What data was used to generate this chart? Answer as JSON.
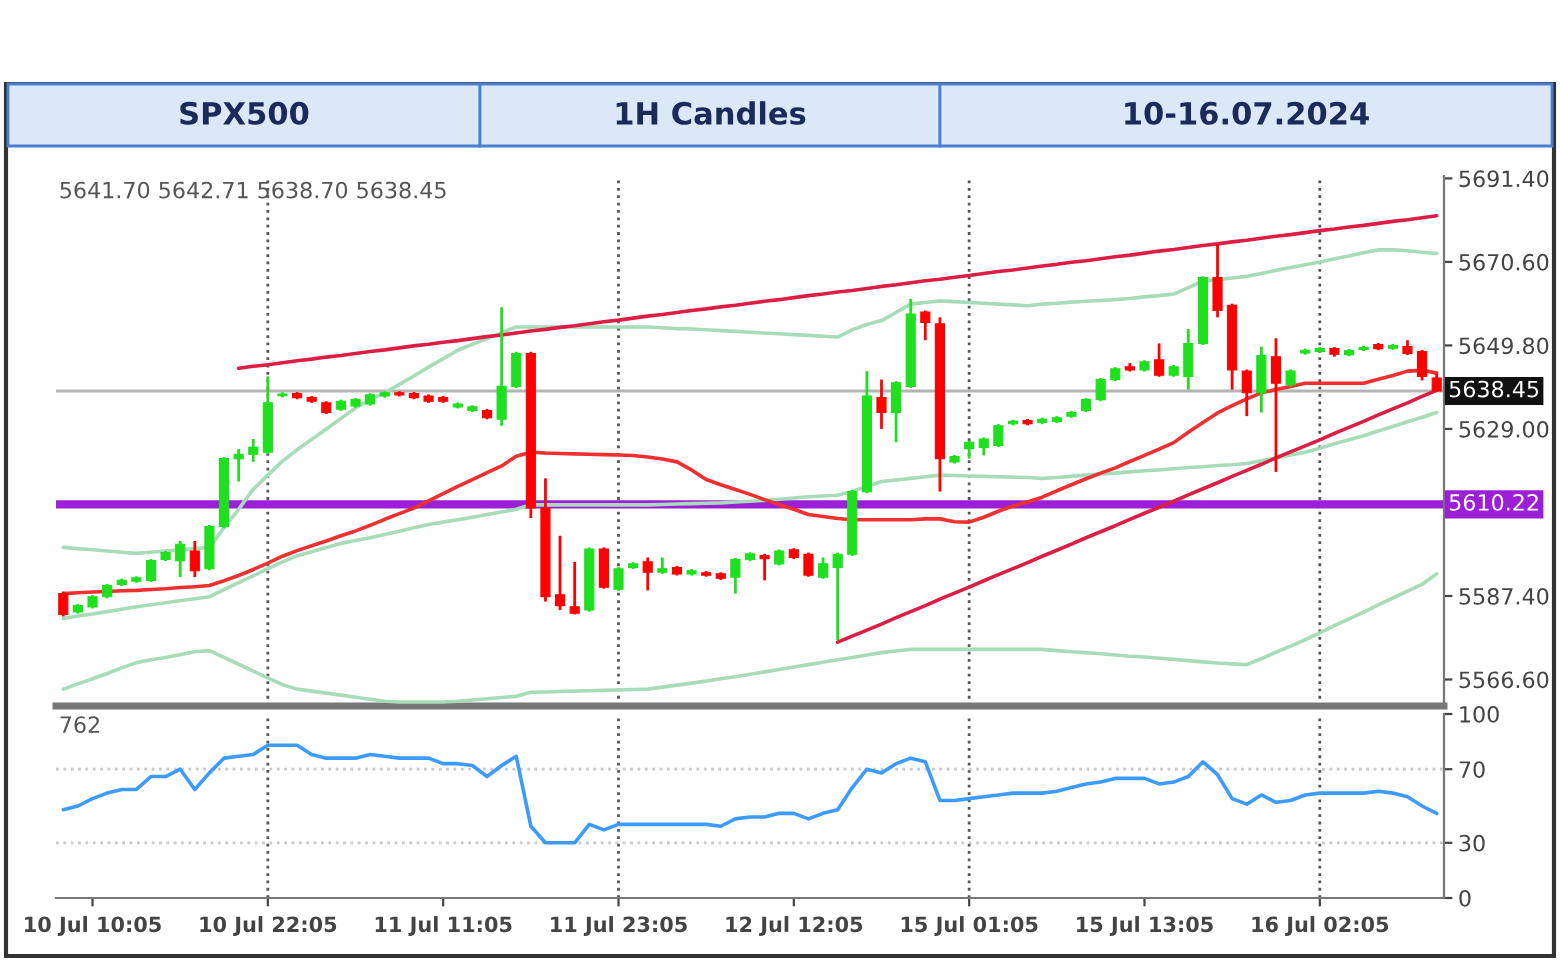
{
  "chart_data": [
    {
      "type": "candlestick",
      "title": "SPX500",
      "subtitle": "1H Candles",
      "annotations": [
        "10-16.07.2024",
        "5641.70 5642.71 5638.70 5638.45"
      ],
      "categories": [
        null,
        null,
        null,
        null,
        null,
        null,
        null,
        null,
        null,
        null,
        null,
        null,
        null,
        null,
        null,
        null,
        null,
        null,
        null,
        null,
        null,
        null,
        null,
        null,
        null,
        null,
        null,
        null,
        null,
        null,
        null,
        null,
        null,
        null,
        null,
        null,
        null,
        null,
        null,
        null,
        null,
        null,
        null,
        null,
        null,
        null,
        null,
        null,
        null,
        null,
        null,
        null,
        null,
        null,
        null,
        null,
        null,
        null,
        null,
        null,
        null,
        null,
        null,
        null,
        null,
        null,
        null,
        null,
        null,
        null,
        null,
        null,
        null,
        null,
        null,
        null,
        null,
        null,
        null,
        null,
        null,
        null,
        null,
        null,
        null,
        null,
        null,
        null,
        null,
        null,
        null,
        null,
        null,
        null,
        null
      ],
      "ohlc": [
        [
          5588.0,
          5588.5,
          5582.3,
          5582.8
        ],
        [
          5583.4,
          5585.4,
          5583.0,
          5585.0
        ],
        [
          5584.7,
          5587.6,
          5584.3,
          5587.2
        ],
        [
          5587.2,
          5590.4,
          5586.8,
          5590.0
        ],
        [
          5590.3,
          5591.7,
          5589.9,
          5591.3
        ],
        [
          5591.1,
          5592.3,
          5590.7,
          5591.9
        ],
        [
          5591.3,
          5596.6,
          5590.9,
          5596.2
        ],
        [
          5596.5,
          5598.6,
          5596.1,
          5598.2
        ],
        [
          5596.2,
          5601.1,
          5592.1,
          5600.3
        ],
        [
          5598.6,
          5601.1,
          5592.1,
          5593.7
        ],
        [
          5594.2,
          5605.1,
          5593.8,
          5604.7
        ],
        [
          5604.7,
          5622.0,
          5604.3,
          5621.6
        ],
        [
          5621.6,
          5624.0,
          5615.9,
          5622.7
        ],
        [
          5622.7,
          5626.5,
          5620.8,
          5624.4
        ],
        [
          5623.2,
          5642.1,
          5622.7,
          5635.5
        ],
        [
          5637.3,
          5638.1,
          5636.9,
          5637.7
        ],
        [
          5637.8,
          5638.2,
          5636.4,
          5636.8
        ],
        [
          5636.8,
          5637.2,
          5635.5,
          5635.9
        ],
        [
          5635.5,
          5635.9,
          5632.7,
          5633.1
        ],
        [
          5633.9,
          5636.3,
          5633.5,
          5635.9
        ],
        [
          5634.7,
          5636.7,
          5634.3,
          5636.3
        ],
        [
          5635.2,
          5637.9,
          5634.8,
          5637.5
        ],
        [
          5637.2,
          5638.4,
          5636.8,
          5638.0
        ],
        [
          5638.0,
          5638.4,
          5637.1,
          5637.5
        ],
        [
          5637.8,
          5638.2,
          5636.4,
          5636.8
        ],
        [
          5637.2,
          5637.6,
          5635.5,
          5635.9
        ],
        [
          5636.8,
          5637.2,
          5635.5,
          5635.9
        ],
        [
          5634.5,
          5635.6,
          5634.1,
          5635.2
        ],
        [
          5633.6,
          5634.9,
          5633.2,
          5634.5
        ],
        [
          5633.6,
          5634.0,
          5631.4,
          5631.8
        ],
        [
          5631.4,
          5659.3,
          5629.8,
          5639.6
        ],
        [
          5639.6,
          5648.2,
          5639.2,
          5647.8
        ],
        [
          5647.8,
          5648.2,
          5606.8,
          5609.3
        ],
        [
          5609.3,
          5616.7,
          5586.0,
          5587.2
        ],
        [
          5587.7,
          5602.4,
          5583.9,
          5585.0
        ],
        [
          5584.7,
          5595.9,
          5582.8,
          5583.1
        ],
        [
          5583.9,
          5599.5,
          5583.5,
          5599.1
        ],
        [
          5599.1,
          5599.5,
          5589.2,
          5589.6
        ],
        [
          5589.1,
          5594.6,
          5588.7,
          5594.2
        ],
        [
          5594.5,
          5595.8,
          5594.1,
          5595.4
        ],
        [
          5595.9,
          5597.0,
          5588.8,
          5593.3
        ],
        [
          5593.3,
          5597.0,
          5592.9,
          5594.2
        ],
        [
          5594.5,
          5594.9,
          5592.5,
          5592.9
        ],
        [
          5592.9,
          5594.1,
          5592.5,
          5593.7
        ],
        [
          5593.2,
          5593.6,
          5592.2,
          5592.6
        ],
        [
          5592.9,
          5593.3,
          5591.4,
          5591.8
        ],
        [
          5592.1,
          5596.9,
          5588.0,
          5596.5
        ],
        [
          5596.5,
          5598.3,
          5596.1,
          5597.9
        ],
        [
          5597.5,
          5597.9,
          5591.3,
          5596.7
        ],
        [
          5595.4,
          5599.0,
          5595.0,
          5598.6
        ],
        [
          5598.9,
          5599.3,
          5596.6,
          5597.0
        ],
        [
          5597.8,
          5598.2,
          5592.2,
          5592.6
        ],
        [
          5592.1,
          5597.0,
          5591.7,
          5595.4
        ],
        [
          5594.5,
          5598.2,
          5576.4,
          5597.8
        ],
        [
          5597.8,
          5613.8,
          5597.4,
          5613.4
        ],
        [
          5613.4,
          5643.4,
          5613.0,
          5637.2
        ],
        [
          5636.8,
          5641.3,
          5629.0,
          5633.1
        ],
        [
          5633.1,
          5640.9,
          5625.7,
          5640.5
        ],
        [
          5639.6,
          5661.4,
          5639.2,
          5657.6
        ],
        [
          5658.1,
          5658.5,
          5651.1,
          5655.5
        ],
        [
          5655.2,
          5656.8,
          5613.4,
          5621.6
        ],
        [
          5620.8,
          5622.5,
          5620.4,
          5622.1
        ],
        [
          5624.1,
          5626.1,
          5621.6,
          5625.7
        ],
        [
          5624.4,
          5626.9,
          5622.4,
          5626.5
        ],
        [
          5624.9,
          5630.2,
          5624.5,
          5629.8
        ],
        [
          5630.3,
          5631.3,
          5629.9,
          5630.9
        ],
        [
          5631.1,
          5631.5,
          5629.9,
          5630.3
        ],
        [
          5630.6,
          5631.8,
          5630.2,
          5631.4
        ],
        [
          5630.9,
          5632.2,
          5630.5,
          5631.8
        ],
        [
          5632.2,
          5633.5,
          5631.8,
          5633.1
        ],
        [
          5633.6,
          5636.7,
          5633.2,
          5636.3
        ],
        [
          5636.3,
          5641.7,
          5635.9,
          5641.3
        ],
        [
          5641.3,
          5644.4,
          5640.9,
          5644.0
        ],
        [
          5644.5,
          5645.4,
          5643.3,
          5643.7
        ],
        [
          5643.7,
          5646.1,
          5643.3,
          5645.7
        ],
        [
          5646.2,
          5650.3,
          5642.0,
          5642.4
        ],
        [
          5642.4,
          5644.9,
          5642.0,
          5644.5
        ],
        [
          5642.1,
          5653.9,
          5638.8,
          5650.3
        ],
        [
          5650.3,
          5667.0,
          5649.9,
          5666.7
        ],
        [
          5666.7,
          5674.9,
          5656.8,
          5658.5
        ],
        [
          5659.8,
          5660.2,
          5638.8,
          5643.7
        ],
        [
          5643.4,
          5643.8,
          5632.2,
          5638.0
        ],
        [
          5638.0,
          5649.5,
          5633.1,
          5647.3
        ],
        [
          5647.0,
          5651.6,
          5618.3,
          5640.4
        ],
        [
          5640.0,
          5643.8,
          5639.6,
          5643.4
        ],
        [
          5647.9,
          5649.0,
          5647.5,
          5648.6
        ],
        [
          5648.3,
          5649.4,
          5647.9,
          5649.0
        ],
        [
          5649.0,
          5649.4,
          5647.0,
          5647.6
        ],
        [
          5647.5,
          5648.9,
          5647.1,
          5648.5
        ],
        [
          5648.8,
          5649.7,
          5648.4,
          5649.3
        ],
        [
          5650.0,
          5650.4,
          5648.6,
          5649.0
        ],
        [
          5649.1,
          5650.2,
          5648.7,
          5649.8
        ],
        [
          5649.5,
          5651.1,
          5647.4,
          5647.8
        ],
        [
          5648.3,
          5648.7,
          5641.1,
          5642.1
        ],
        [
          5641.7,
          5642.71,
          5638.45,
          5638.45
        ]
      ],
      "colors": [
        "#ff0000",
        "#1ee01e",
        "#1ee01e",
        "#1ee01e",
        "#1ee01e",
        "#1ee01e",
        "#1ee01e",
        "#1ee01e",
        "#1ee01e",
        "#ff0000",
        "#1ee01e",
        "#1ee01e",
        "#1ee01e",
        "#1ee01e",
        "#1ee01e",
        "#1ee01e",
        "#ff0000",
        "#ff0000",
        "#ff0000",
        "#1ee01e",
        "#1ee01e",
        "#1ee01e",
        "#1ee01e",
        "#ff0000",
        "#ff0000",
        "#ff0000",
        "#ff0000",
        "#1ee01e",
        "#1ee01e",
        "#ff0000",
        "#1ee01e",
        "#1ee01e",
        "#ff0000",
        "#ff0000",
        "#ff0000",
        "#ff0000",
        "#1ee01e",
        "#ff0000",
        "#1ee01e",
        "#1ee01e",
        "#ff0000",
        "#1ee01e",
        "#ff0000",
        "#1ee01e",
        "#ff0000",
        "#ff0000",
        "#1ee01e",
        "#1ee01e",
        "#ff0000",
        "#1ee01e",
        "#ff0000",
        "#ff0000",
        "#1ee01e",
        "#1ee01e",
        "#1ee01e",
        "#1ee01e",
        "#ff0000",
        "#1ee01e",
        "#1ee01e",
        "#ff0000",
        "#ff0000",
        "#1ee01e",
        "#1ee01e",
        "#1ee01e",
        "#1ee01e",
        "#1ee01e",
        "#ff0000",
        "#1ee01e",
        "#1ee01e",
        "#1ee01e",
        "#1ee01e",
        "#1ee01e",
        "#1ee01e",
        "#ff0000",
        "#1ee01e",
        "#ff0000",
        "#1ee01e",
        "#1ee01e",
        "#1ee01e",
        "#ff0000",
        "#ff0000",
        "#ff0000",
        "#1ee01e",
        "#ff0000",
        "#1ee01e",
        "#1ee01e",
        "#1ee01e",
        "#ff0000",
        "#1ee01e",
        "#1ee01e",
        "#ff0000",
        "#1ee01e",
        "#ff0000",
        "#ff0000",
        "#ff0000"
      ],
      "series": [
        {
          "type": "line",
          "color": "#a8dcb8",
          "values": [
            5599.5,
            5599.2,
            5598.9,
            5598.6,
            5598.3,
            5598.0,
            5598.3,
            5598.6,
            5598.9,
            5599.2,
            5599.5,
            5604.4,
            5609.0,
            5614.0,
            5617.5,
            5621.0,
            5623.8,
            5626.4,
            5629.0,
            5631.6,
            5634.2,
            5636.4,
            5638.0,
            5640.1,
            5642.2,
            5644.4,
            5646.5,
            5648.6,
            5650.1,
            5651.5,
            5653.0,
            5654.4,
            5654.4,
            5654.4,
            5654.4,
            5654.4,
            5654.4,
            5654.4,
            5654.4,
            5654.4,
            5654.4,
            5654.2,
            5654.0,
            5653.9,
            5653.7,
            5653.5,
            5653.3,
            5653.1,
            5652.9,
            5652.7,
            5652.5,
            5652.3,
            5652.1,
            5651.9,
            5653.7,
            5655.0,
            5656.0,
            5658.0,
            5660.1,
            5660.5,
            5660.9,
            5660.7,
            5660.5,
            5660.3,
            5660.1,
            5659.9,
            5659.7,
            5660.1,
            5660.3,
            5660.6,
            5660.8,
            5661.0,
            5661.2,
            5661.5,
            5661.9,
            5662.2,
            5662.6,
            5664.2,
            5665.8,
            5666.2,
            5666.6,
            5667.0,
            5667.7,
            5668.5,
            5669.2,
            5669.9,
            5670.6,
            5671.4,
            5672.1,
            5672.9,
            5673.6,
            5673.6,
            5673.4,
            5673.0,
            5672.7
          ]
        },
        {
          "type": "line",
          "color": "#a8dcb8",
          "values": [
            5581.8,
            5582.4,
            5582.9,
            5583.5,
            5584.1,
            5584.7,
            5585.2,
            5585.7,
            5586.2,
            5586.7,
            5587.2,
            5589.0,
            5590.7,
            5592.4,
            5594.2,
            5595.9,
            5597.4,
            5598.4,
            5599.5,
            5600.5,
            5601.2,
            5601.9,
            5602.7,
            5603.5,
            5604.4,
            5605.2,
            5605.8,
            5606.4,
            5607.0,
            5607.7,
            5608.3,
            5609.0,
            5610.1,
            5610.1,
            5610.1,
            5610.1,
            5610.1,
            5610.1,
            5610.1,
            5610.1,
            5610.1,
            5610.2,
            5610.3,
            5610.4,
            5610.5,
            5610.6,
            5610.8,
            5611.0,
            5611.2,
            5611.5,
            5611.8,
            5612.1,
            5612.3,
            5612.5,
            5613.5,
            5614.7,
            5615.9,
            5616.3,
            5616.7,
            5617.1,
            5617.5,
            5617.4,
            5617.3,
            5617.2,
            5617.1,
            5617.0,
            5616.9,
            5616.7,
            5616.9,
            5617.2,
            5617.5,
            5617.8,
            5618.0,
            5618.3,
            5618.6,
            5618.8,
            5619.1,
            5619.4,
            5619.6,
            5619.9,
            5620.1,
            5620.4,
            5621.1,
            5621.8,
            5622.5,
            5623.2,
            5624.2,
            5625.3,
            5626.3,
            5627.3,
            5628.5,
            5629.6,
            5630.8,
            5631.9,
            5633.1
          ]
        },
        {
          "type": "line",
          "color": "#a8dcb8",
          "values": [
            5564.2,
            5565.5,
            5566.8,
            5568.1,
            5569.5,
            5570.8,
            5571.5,
            5572.1,
            5572.8,
            5573.5,
            5573.8,
            5572.1,
            5570.4,
            5568.7,
            5567.0,
            5565.3,
            5564.2,
            5563.7,
            5563.2,
            5562.7,
            5562.2,
            5561.7,
            5561.2,
            5561.0,
            5561.0,
            5561.0,
            5561.0,
            5561.2,
            5561.5,
            5561.8,
            5562.1,
            5562.4,
            5563.4,
            5563.5,
            5563.6,
            5563.7,
            5563.8,
            5563.9,
            5564.0,
            5564.1,
            5564.2,
            5564.7,
            5565.2,
            5565.7,
            5566.2,
            5566.8,
            5567.3,
            5567.9,
            5568.5,
            5569.1,
            5569.7,
            5570.3,
            5570.9,
            5571.5,
            5572.1,
            5572.7,
            5573.3,
            5573.7,
            5574.1,
            5574.1,
            5574.1,
            5574.1,
            5574.1,
            5574.1,
            5574.1,
            5574.1,
            5574.1,
            5574.1,
            5573.8,
            5573.5,
            5573.3,
            5573.0,
            5572.7,
            5572.4,
            5572.2,
            5571.9,
            5571.6,
            5571.3,
            5571.0,
            5570.7,
            5570.5,
            5570.3,
            5571.8,
            5573.4,
            5574.9,
            5576.5,
            5578.2,
            5580.0,
            5581.7,
            5583.4,
            5585.2,
            5586.9,
            5588.6,
            5590.3,
            5592.9
          ]
        },
        {
          "type": "line",
          "color": "#f03030",
          "values": [
            5588.0,
            5588.2,
            5588.4,
            5588.5,
            5588.7,
            5588.8,
            5589.0,
            5589.2,
            5589.5,
            5589.7,
            5590.0,
            5591.2,
            5592.5,
            5594.0,
            5595.6,
            5597.3,
            5598.7,
            5599.9,
            5601.1,
            5602.4,
            5603.6,
            5605.0,
            5606.5,
            5607.9,
            5609.3,
            5611.1,
            5612.9,
            5614.7,
            5616.4,
            5618.1,
            5619.8,
            5622.2,
            5623.2,
            5623.0,
            5622.9,
            5622.8,
            5622.7,
            5622.6,
            5622.5,
            5622.4,
            5622.0,
            5621.5,
            5620.8,
            5618.8,
            5616.4,
            5615.1,
            5613.9,
            5612.7,
            5611.4,
            5610.2,
            5609.0,
            5607.7,
            5607.2,
            5606.7,
            5606.4,
            5606.4,
            5606.4,
            5606.4,
            5606.4,
            5606.6,
            5606.6,
            5605.9,
            5605.8,
            5607.0,
            5608.5,
            5609.8,
            5610.8,
            5612.0,
            5613.6,
            5615.1,
            5616.6,
            5618.0,
            5619.3,
            5620.9,
            5622.4,
            5624.0,
            5625.6,
            5628.2,
            5630.6,
            5633.0,
            5634.8,
            5636.5,
            5638.0,
            5638.8,
            5639.6,
            5640.4,
            5640.4,
            5640.4,
            5640.4,
            5640.4,
            5641.4,
            5642.3,
            5643.4,
            5643.6,
            5642.9
          ]
        },
        {
          "type": "line",
          "color": "#dc1e46",
          "values": [
            null,
            null,
            null,
            null,
            null,
            null,
            null,
            null,
            null,
            null,
            null,
            null,
            5644.1,
            5644.6,
            5645.0,
            5645.5,
            5646.0,
            5646.4,
            5646.9,
            5647.3,
            5647.8,
            5648.3,
            5648.7,
            5649.2,
            5649.7,
            5650.1,
            5650.6,
            5651.0,
            5651.5,
            5652.0,
            5652.4,
            5652.9,
            5653.4,
            5653.8,
            5654.3,
            5654.7,
            5655.2,
            5655.7,
            5656.1,
            5656.6,
            5657.1,
            5657.5,
            5658.0,
            5658.5,
            5658.9,
            5659.4,
            5659.8,
            5660.3,
            5660.8,
            5661.2,
            5661.7,
            5662.2,
            5662.6,
            5663.1,
            5663.5,
            5664.0,
            5664.5,
            5664.9,
            5665.4,
            5665.9,
            5666.3,
            5666.8,
            5667.2,
            5667.7,
            5668.2,
            5668.6,
            5669.1,
            5669.6,
            5670.0,
            5670.5,
            5670.9,
            5671.4,
            5671.9,
            5672.3,
            5672.8,
            5673.3,
            5673.7,
            5674.2,
            5674.7,
            5675.1,
            5675.6,
            5676.0,
            5676.5,
            5677.0,
            5677.4,
            5677.9,
            5678.4,
            5678.8,
            5679.3,
            5679.7,
            5680.2,
            5680.7,
            5681.1,
            5681.6,
            5682.1
          ]
        },
        {
          "type": "line",
          "color": "#dc1e46",
          "values": [
            null,
            null,
            null,
            null,
            null,
            null,
            null,
            null,
            null,
            null,
            null,
            null,
            null,
            null,
            null,
            null,
            null,
            null,
            null,
            null,
            null,
            null,
            null,
            null,
            null,
            null,
            null,
            null,
            null,
            null,
            null,
            null,
            null,
            null,
            null,
            null,
            null,
            null,
            null,
            null,
            null,
            null,
            null,
            null,
            null,
            null,
            null,
            null,
            null,
            null,
            null,
            null,
            null,
            5575.9,
            5577.4,
            5578.9,
            5580.4,
            5582.0,
            5583.5,
            5585.0,
            5586.6,
            5588.1,
            5589.6,
            5591.2,
            5592.7,
            5594.2,
            5595.7,
            5597.3,
            5598.8,
            5600.3,
            5601.9,
            5603.4,
            5604.9,
            5606.5,
            5608.0,
            5609.5,
            5611.0,
            5612.6,
            5614.1,
            5615.6,
            5617.2,
            5618.7,
            5620.2,
            5621.8,
            5623.3,
            5624.8,
            5626.3,
            5627.9,
            5629.4,
            5630.9,
            5632.5,
            5634.0,
            5635.5,
            5637.1,
            5638.6
          ]
        }
      ],
      "ylim": [
        5560,
        5692
      ],
      "yticks": [
        {
          "value": 5566.6,
          "label": "5566.60"
        },
        {
          "value": 5587.4,
          "label": "5587.40"
        },
        {
          "value": 5629.0,
          "label": "5629.00"
        },
        {
          "value": 5649.8,
          "label": "5649.80"
        },
        {
          "value": 5670.6,
          "label": "5670.60"
        },
        {
          "value": 5691.4,
          "label": "5691.40"
        }
      ],
      "ref_lines": [
        {
          "axis": "y",
          "value": 5638.45,
          "label": "5638.45",
          "color": "#b4b4b4",
          "line_style": "solid"
        },
        {
          "axis": "y",
          "value": 5610.22,
          "label": "5610.22",
          "color": "#9b1fd6",
          "line_style": "solid"
        }
      ],
      "tick_labels": "y",
      "grid": "x",
      "legend": false
    },
    {
      "type": "line",
      "annotations": [
        "762"
      ],
      "categories": [
        null,
        null,
        "10 Jul 10:05",
        null,
        null,
        null,
        null,
        null,
        null,
        null,
        null,
        null,
        null,
        null,
        "10 Jul 22:05",
        null,
        null,
        null,
        null,
        null,
        null,
        null,
        null,
        null,
        null,
        null,
        "11 Jul 11:05",
        null,
        null,
        null,
        null,
        null,
        null,
        null,
        null,
        null,
        null,
        null,
        "11 Jul 23:05",
        null,
        null,
        null,
        null,
        null,
        null,
        null,
        null,
        null,
        null,
        null,
        "12 Jul 12:05",
        null,
        null,
        null,
        null,
        null,
        null,
        null,
        null,
        null,
        null,
        null,
        "15 Jul 01:05",
        null,
        null,
        null,
        null,
        null,
        null,
        null,
        null,
        null,
        null,
        null,
        "15 Jul 13:05",
        null,
        null,
        null,
        null,
        null,
        null,
        null,
        null,
        null,
        null,
        null,
        "16 Jul 02:05",
        null,
        null,
        null,
        null,
        null,
        null,
        null,
        null
      ],
      "series": [
        {
          "color": "#3d9bff",
          "values": [
            48,
            50,
            54,
            57,
            59,
            59,
            66,
            66,
            70,
            59,
            68,
            76,
            77,
            78,
            83,
            83,
            83,
            78,
            76,
            76,
            76,
            78,
            77,
            76,
            76,
            76,
            73,
            73,
            72,
            66,
            72,
            77,
            39,
            30,
            30,
            30,
            40,
            37,
            40,
            40,
            40,
            40,
            40,
            40,
            40,
            39,
            43,
            44,
            44,
            46,
            46,
            43,
            46,
            48,
            60,
            70,
            68,
            73,
            76,
            74,
            53,
            53,
            54,
            55,
            56,
            57,
            57,
            57,
            58,
            60,
            62,
            63,
            65,
            65,
            65,
            62,
            63,
            66,
            74,
            67,
            54,
            51,
            56,
            52,
            53,
            56,
            57,
            57,
            57,
            57,
            58,
            57,
            55,
            50,
            46
          ]
        }
      ],
      "ylim": [
        0,
        100
      ],
      "yticks": [
        0,
        30,
        70,
        100
      ],
      "ref_lines": [
        {
          "axis": "y",
          "value": 30,
          "color": "#c8c8c8",
          "line_style": "dotted"
        },
        {
          "axis": "y",
          "value": 70,
          "color": "#c8c8c8",
          "line_style": "dotted"
        }
      ],
      "grid": "x",
      "legend": false
    }
  ]
}
